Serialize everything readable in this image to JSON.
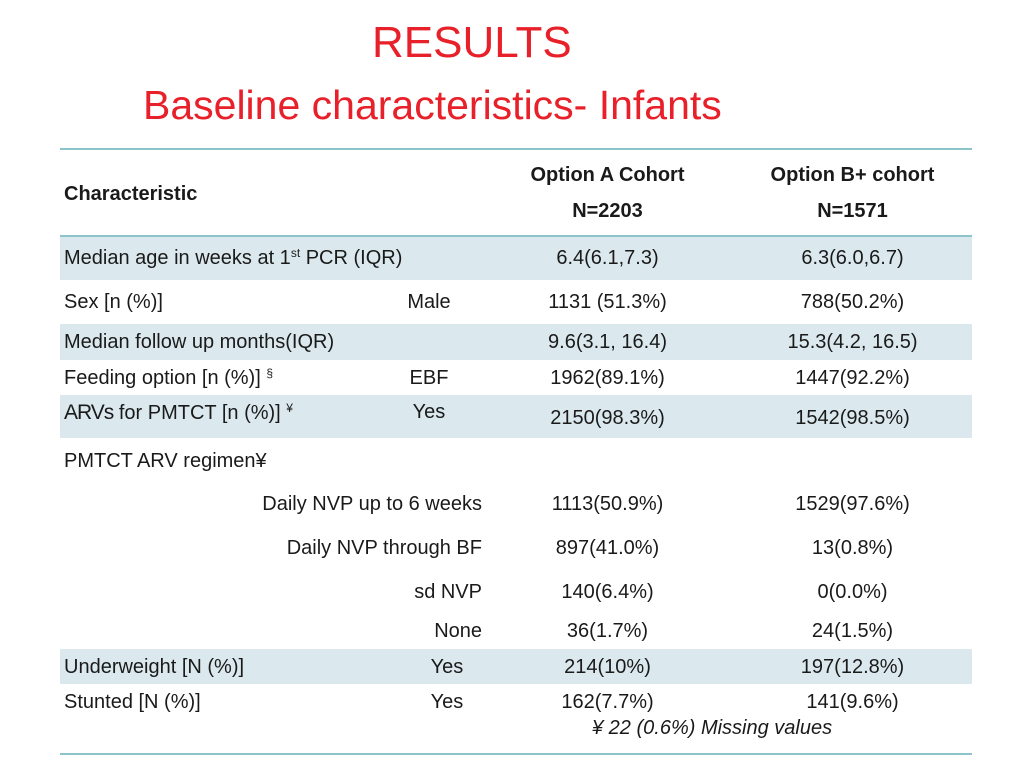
{
  "title": "RESULTS",
  "subtitle": "Baseline characteristics- Infants",
  "header": {
    "characteristic": "Characteristic",
    "col_a_name": "Option A Cohort",
    "col_a_n": "N=2203",
    "col_b_name": "Option B+ cohort",
    "col_b_n": "N=1571"
  },
  "rows": {
    "age": {
      "label_pre": "Median age in weeks at 1",
      "label_sup": "st",
      "label_post": " PCR  (IQR)",
      "a": "6.4(6.1,7.3)",
      "b": "6.3(6.0,6.7)"
    },
    "sex": {
      "label": "Sex [n (%)]",
      "sub": "Male",
      "a": "1131 (51.3%)",
      "b": "788(50.2%)"
    },
    "followup": {
      "label": "Median follow up months(IQR)",
      "a": "9.6(3.1, 16.4)",
      "b": "15.3(4.2, 16.5)"
    },
    "feeding": {
      "label": "Feeding option [n (%)] ",
      "sup": "§",
      "sub": "EBF",
      "a": "1962(89.1%)",
      "b": "1447(92.2%)"
    },
    "arvs": {
      "label_arv": "ARVs",
      "label_rest": " for PMTCT [n (%)] ",
      "sup": "¥",
      "sub": "Yes",
      "a": "2150(98.3%)",
      "b": "1542(98.5%)"
    },
    "regimen": {
      "label": "PMTCT ARV regimen¥"
    },
    "daily6": {
      "sub": "Daily NVP up to 6 weeks",
      "a": "1113(50.9%)",
      "b": "1529(97.6%)"
    },
    "dailybf": {
      "sub": "Daily NVP through BF",
      "a": "897(41.0%)",
      "b": "13(0.8%)"
    },
    "sd": {
      "sub": "sd NVP",
      "a": "140(6.4%)",
      "b": "0(0.0%)"
    },
    "none": {
      "sub": "None",
      "a": "36(1.7%)",
      "b": "24(1.5%)"
    },
    "underweight": {
      "label": "Underweight [N (%)]",
      "sub": "Yes",
      "a": "214(10%)",
      "b": "197(12.8%)"
    },
    "stunted": {
      "label": "Stunted [N (%)]",
      "sub": "Yes",
      "a": "162(7.7%)",
      "b": "141(9.6%)"
    }
  },
  "footnote": "¥   22 (0.6%) Missing values",
  "colors": {
    "title": "#e8202a",
    "band": "#dbe9ef",
    "rule": "#8cc4cc"
  }
}
